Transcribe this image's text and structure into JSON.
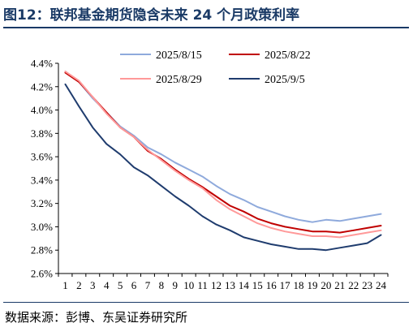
{
  "figure_title": "图12：联邦基金期货隐含未来 24 个月政策利率",
  "source": "数据来源：彭博、东吴证券研究所",
  "chart_data": {
    "type": "line",
    "x": [
      1,
      2,
      3,
      4,
      5,
      6,
      7,
      8,
      9,
      10,
      11,
      12,
      13,
      14,
      15,
      16,
      17,
      18,
      19,
      20,
      21,
      22,
      23,
      24
    ],
    "xticks": [
      "1",
      "2",
      "3",
      "4",
      "5",
      "6",
      "7",
      "8",
      "9",
      "10",
      "11",
      "12",
      "13",
      "14",
      "15",
      "16",
      "17",
      "18",
      "19",
      "20",
      "21",
      "22",
      "23",
      "24"
    ],
    "ylim": [
      2.6,
      4.4
    ],
    "yticks": [
      2.6,
      2.8,
      3.0,
      3.2,
      3.4,
      3.6,
      3.8,
      4.0,
      4.2,
      4.4
    ],
    "ytick_labels": [
      "2.6%",
      "2.8%",
      "3.0%",
      "3.2%",
      "3.4%",
      "3.6%",
      "3.8%",
      "4.0%",
      "4.2%",
      "4.4%"
    ],
    "legend_position": "top",
    "grid": false,
    "series": [
      {
        "name": "2025/8/15",
        "color": "#8faadc",
        "values": [
          4.33,
          4.24,
          4.1,
          3.98,
          3.86,
          3.78,
          3.68,
          3.62,
          3.55,
          3.49,
          3.43,
          3.35,
          3.28,
          3.23,
          3.17,
          3.13,
          3.09,
          3.06,
          3.04,
          3.06,
          3.05,
          3.07,
          3.09,
          3.11
        ]
      },
      {
        "name": "2025/8/22",
        "color": "#c00000",
        "values": [
          4.32,
          4.24,
          4.11,
          3.98,
          3.85,
          3.77,
          3.65,
          3.58,
          3.49,
          3.41,
          3.34,
          3.26,
          3.18,
          3.13,
          3.07,
          3.03,
          3.0,
          2.98,
          2.96,
          2.96,
          2.95,
          2.97,
          2.99,
          3.01
        ]
      },
      {
        "name": "2025/8/29",
        "color": "#ff9999",
        "values": [
          4.33,
          4.25,
          4.11,
          3.97,
          3.85,
          3.77,
          3.66,
          3.57,
          3.48,
          3.4,
          3.33,
          3.23,
          3.15,
          3.09,
          3.03,
          2.99,
          2.96,
          2.94,
          2.92,
          2.92,
          2.91,
          2.93,
          2.95,
          2.97
        ]
      },
      {
        "name": "2025/9/5",
        "color": "#1f3c6e",
        "values": [
          4.22,
          4.03,
          3.85,
          3.71,
          3.62,
          3.51,
          3.44,
          3.35,
          3.26,
          3.18,
          3.09,
          3.02,
          2.97,
          2.91,
          2.88,
          2.85,
          2.83,
          2.81,
          2.81,
          2.8,
          2.82,
          2.84,
          2.86,
          2.93
        ]
      }
    ]
  }
}
